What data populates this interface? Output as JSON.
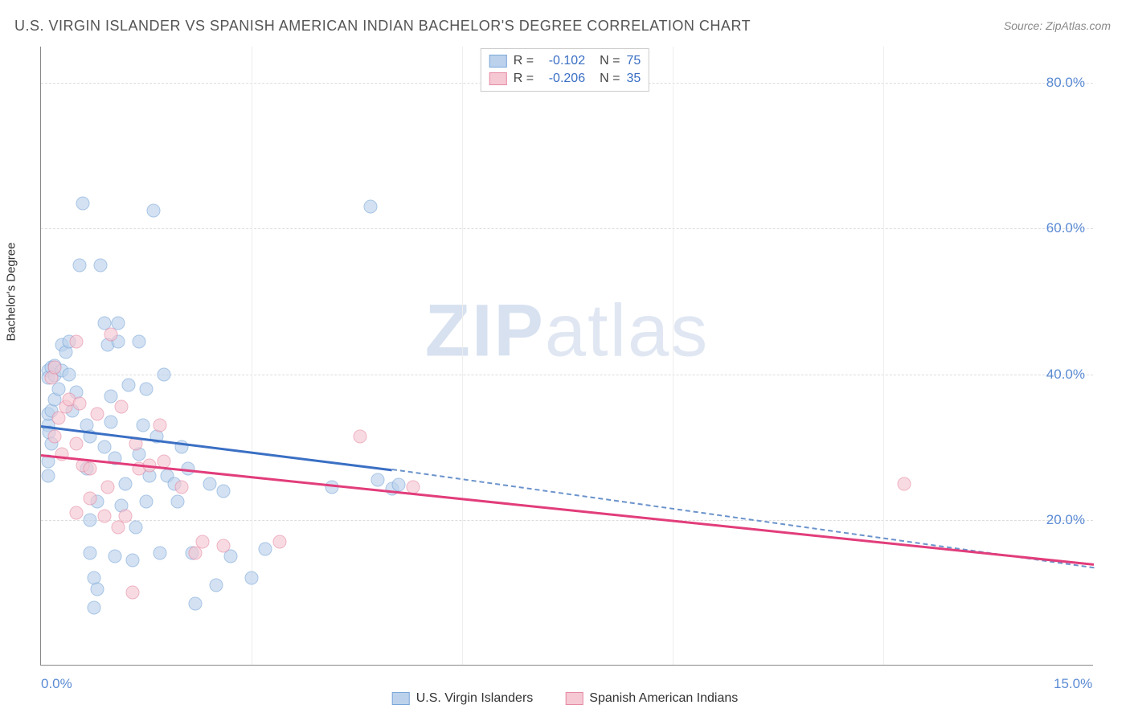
{
  "title": "U.S. VIRGIN ISLANDER VS SPANISH AMERICAN INDIAN BACHELOR'S DEGREE CORRELATION CHART",
  "source": "Source: ZipAtlas.com",
  "y_axis_label": "Bachelor's Degree",
  "watermark_bold": "ZIP",
  "watermark_light": "atlas",
  "chart": {
    "type": "scatter",
    "xlim": [
      0,
      15
    ],
    "ylim": [
      0,
      85
    ],
    "x_ticks": [
      0,
      15
    ],
    "x_tick_labels": [
      "0.0%",
      "15.0%"
    ],
    "x_minor_gridlines": [
      3,
      6,
      9,
      12
    ],
    "y_ticks": [
      20,
      40,
      60,
      80
    ],
    "y_tick_labels": [
      "20.0%",
      "40.0%",
      "60.0%",
      "80.0%"
    ],
    "background_color": "#ffffff",
    "grid_color": "#dddddd",
    "axis_color": "#888888",
    "tick_label_color": "#5b8bd4",
    "tick_label_fontsize": 17,
    "title_fontsize": 18,
    "title_color": "#555555"
  },
  "series": [
    {
      "name": "U.S. Virgin Islanders",
      "fill_color": "#bcd2ec",
      "stroke_color": "#7aa7d9",
      "fill_opacity": 0.65,
      "marker_size": 17,
      "R_label": "R =",
      "R_value": "-0.102",
      "N_label": "N =",
      "N_value": "75",
      "trend": {
        "x1": 0,
        "y1": 33,
        "x2": 5,
        "y2": 27,
        "color": "#3a6fc4",
        "width": 3
      },
      "trend_dash": {
        "x1": 5,
        "y1": 27,
        "x2": 15,
        "y2": 13.5,
        "color": "#6b93cc"
      },
      "points": [
        [
          0.1,
          40.5
        ],
        [
          0.1,
          39.5
        ],
        [
          0.15,
          41
        ],
        [
          0.1,
          33
        ],
        [
          0.1,
          34.5
        ],
        [
          0.15,
          35
        ],
        [
          0.12,
          32
        ],
        [
          0.1,
          26
        ],
        [
          0.1,
          28
        ],
        [
          0.15,
          30.5
        ],
        [
          0.2,
          39.8
        ],
        [
          0.2,
          41.2
        ],
        [
          0.2,
          36.5
        ],
        [
          0.25,
          38
        ],
        [
          0.3,
          44
        ],
        [
          0.3,
          40.5
        ],
        [
          0.35,
          43
        ],
        [
          0.4,
          44.5
        ],
        [
          0.4,
          40
        ],
        [
          0.45,
          35
        ],
        [
          0.5,
          37.5
        ],
        [
          0.55,
          55
        ],
        [
          0.6,
          63.5
        ],
        [
          0.65,
          33
        ],
        [
          0.65,
          27
        ],
        [
          0.7,
          31.5
        ],
        [
          0.7,
          15.5
        ],
        [
          0.7,
          20
        ],
        [
          0.75,
          12
        ],
        [
          0.75,
          8
        ],
        [
          0.8,
          10.5
        ],
        [
          0.8,
          22.5
        ],
        [
          0.85,
          55
        ],
        [
          0.9,
          47
        ],
        [
          0.9,
          30
        ],
        [
          0.95,
          44
        ],
        [
          1.0,
          33.5
        ],
        [
          1.0,
          37
        ],
        [
          1.05,
          15
        ],
        [
          1.05,
          28.5
        ],
        [
          1.1,
          44.5
        ],
        [
          1.1,
          47
        ],
        [
          1.15,
          22
        ],
        [
          1.2,
          25
        ],
        [
          1.25,
          38.5
        ],
        [
          1.3,
          14.5
        ],
        [
          1.35,
          19
        ],
        [
          1.4,
          44.5
        ],
        [
          1.4,
          29
        ],
        [
          1.45,
          33
        ],
        [
          1.5,
          38
        ],
        [
          1.5,
          22.5
        ],
        [
          1.55,
          26
        ],
        [
          1.6,
          62.5
        ],
        [
          1.65,
          31.5
        ],
        [
          1.7,
          15.5
        ],
        [
          1.75,
          40
        ],
        [
          1.8,
          26
        ],
        [
          1.9,
          25
        ],
        [
          1.95,
          22.5
        ],
        [
          2.0,
          30
        ],
        [
          2.1,
          27
        ],
        [
          2.15,
          15.5
        ],
        [
          2.2,
          8.5
        ],
        [
          2.4,
          25
        ],
        [
          2.5,
          11
        ],
        [
          2.6,
          24
        ],
        [
          2.7,
          15
        ],
        [
          3.0,
          12
        ],
        [
          3.2,
          16
        ],
        [
          4.15,
          24.5
        ],
        [
          4.7,
          63
        ],
        [
          4.8,
          25.5
        ],
        [
          5.0,
          24.3
        ],
        [
          5.1,
          24.8
        ]
      ]
    },
    {
      "name": "Spanish American Indians",
      "fill_color": "#f5c8d3",
      "stroke_color": "#e68aa4",
      "fill_opacity": 0.65,
      "marker_size": 17,
      "R_label": "R =",
      "R_value": "-0.206",
      "N_label": "N =",
      "N_value": "35",
      "trend": {
        "x1": 0,
        "y1": 29,
        "x2": 15,
        "y2": 14,
        "color": "#e23d7b",
        "width": 3
      },
      "points": [
        [
          0.15,
          39.5
        ],
        [
          0.2,
          41
        ],
        [
          0.2,
          31.5
        ],
        [
          0.25,
          34
        ],
        [
          0.3,
          29
        ],
        [
          0.35,
          35.5
        ],
        [
          0.4,
          36.5
        ],
        [
          0.5,
          30.5
        ],
        [
          0.5,
          44.5
        ],
        [
          0.5,
          21
        ],
        [
          0.55,
          36
        ],
        [
          0.6,
          27.5
        ],
        [
          0.7,
          27
        ],
        [
          0.7,
          23
        ],
        [
          0.8,
          34.5
        ],
        [
          0.9,
          20.5
        ],
        [
          0.95,
          24.5
        ],
        [
          1.0,
          45.5
        ],
        [
          1.1,
          19
        ],
        [
          1.15,
          35.5
        ],
        [
          1.2,
          20.5
        ],
        [
          1.3,
          10
        ],
        [
          1.35,
          30.5
        ],
        [
          1.4,
          27
        ],
        [
          1.55,
          27.5
        ],
        [
          1.7,
          33
        ],
        [
          1.75,
          28
        ],
        [
          2.0,
          24.5
        ],
        [
          2.2,
          15.5
        ],
        [
          2.3,
          17
        ],
        [
          2.6,
          16.5
        ],
        [
          3.4,
          17
        ],
        [
          4.55,
          31.5
        ],
        [
          5.3,
          24.5
        ],
        [
          12.3,
          25
        ]
      ]
    }
  ],
  "legend_top_value_color": "#3a6fc4",
  "legend_top_label_color": "#444444"
}
